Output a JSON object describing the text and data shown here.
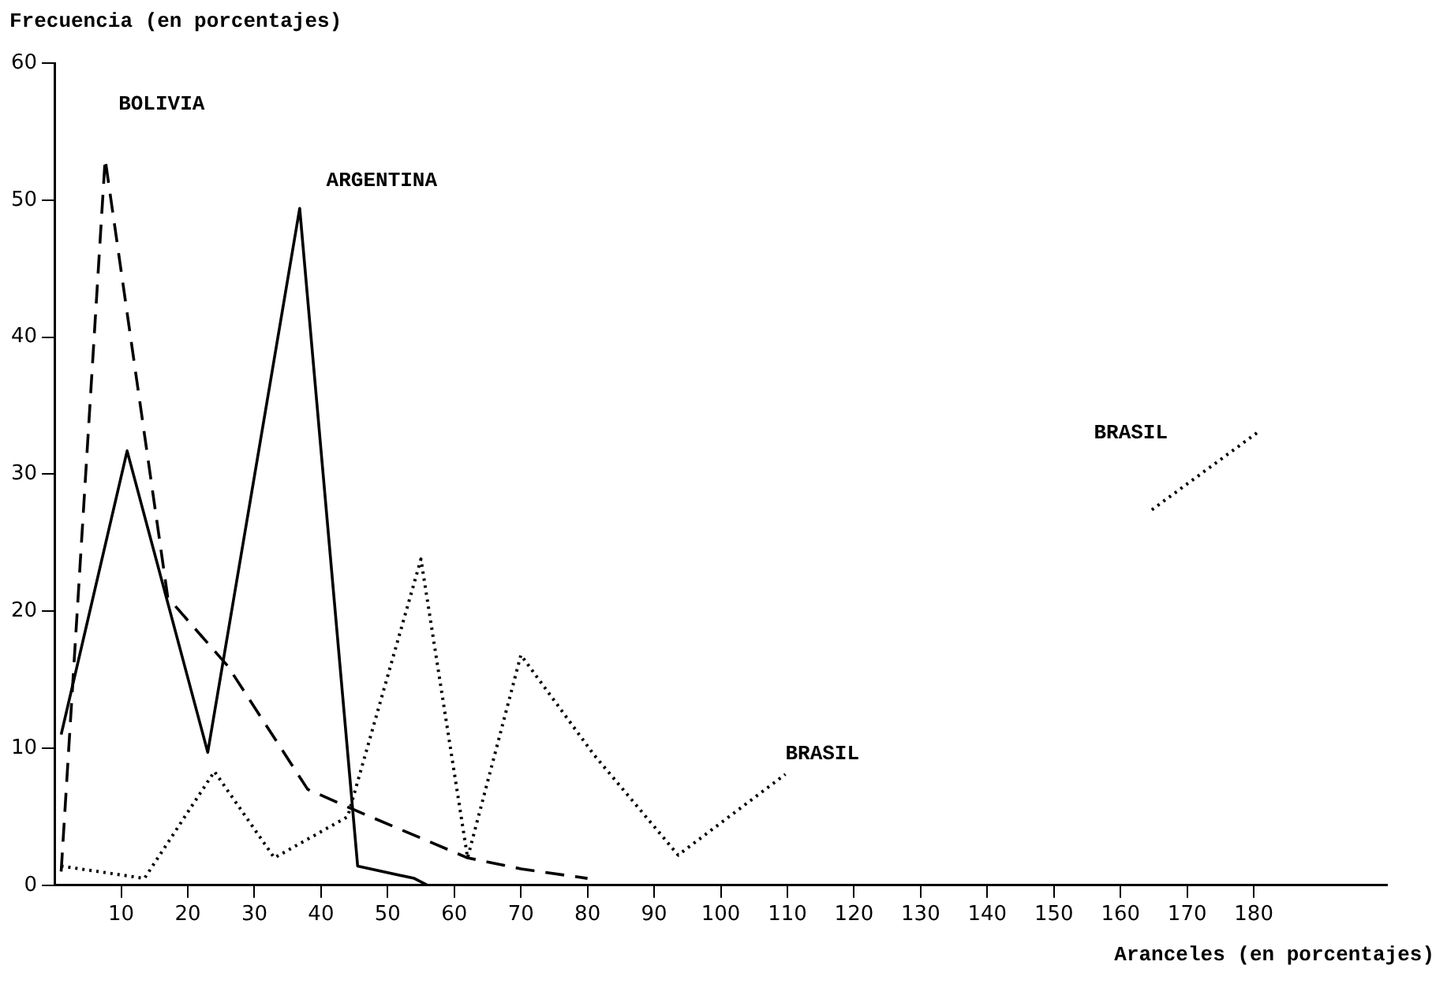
{
  "chart_data": {
    "type": "line",
    "xlabel": "Aranceles (en porcentajes)",
    "ylabel": "Frecuencia (en porcentajes)",
    "xlim": [
      0,
      200
    ],
    "xticks": [
      10,
      20,
      30,
      40,
      50,
      60,
      70,
      80,
      90,
      100,
      110,
      120,
      130,
      140,
      150,
      160,
      170,
      180
    ],
    "ylim": [
      0,
      60
    ],
    "yticks": [
      0,
      10,
      20,
      30,
      40,
      50,
      60
    ],
    "grid": false,
    "legend": false,
    "marker": "none",
    "series": [
      {
        "name": "BOLIVIA",
        "color": "#000000",
        "line_style": "dashed",
        "x": [
          1,
          7.6,
          17,
          26,
          38,
          45,
          62,
          70,
          80
        ],
        "values": [
          1,
          53,
          21,
          16,
          7,
          5.5,
          2,
          1.2,
          0.5
        ]
      },
      {
        "name": "ARGENTINA",
        "color": "#000000",
        "line_style": "solid",
        "x": [
          1,
          10.9,
          23,
          36.8,
          45.5,
          54,
          56
        ],
        "values": [
          11,
          31.7,
          9.7,
          49.4,
          1.4,
          0.5,
          0
        ]
      },
      {
        "name": "BRASIL",
        "color": "#000000",
        "line_style": "dotted",
        "x": [
          1,
          13.5,
          24,
          33,
          44,
          55,
          62,
          70,
          81,
          93.6,
          109.7,
          137,
          164.7,
          181
        ],
        "values": [
          1.4,
          0.5,
          8.3,
          2,
          5,
          23.8,
          2,
          16.8,
          9.5,
          2.2,
          8.1,
          null,
          27.4,
          33.2
        ]
      }
    ],
    "annotations": [
      "BRASIL"
    ]
  }
}
